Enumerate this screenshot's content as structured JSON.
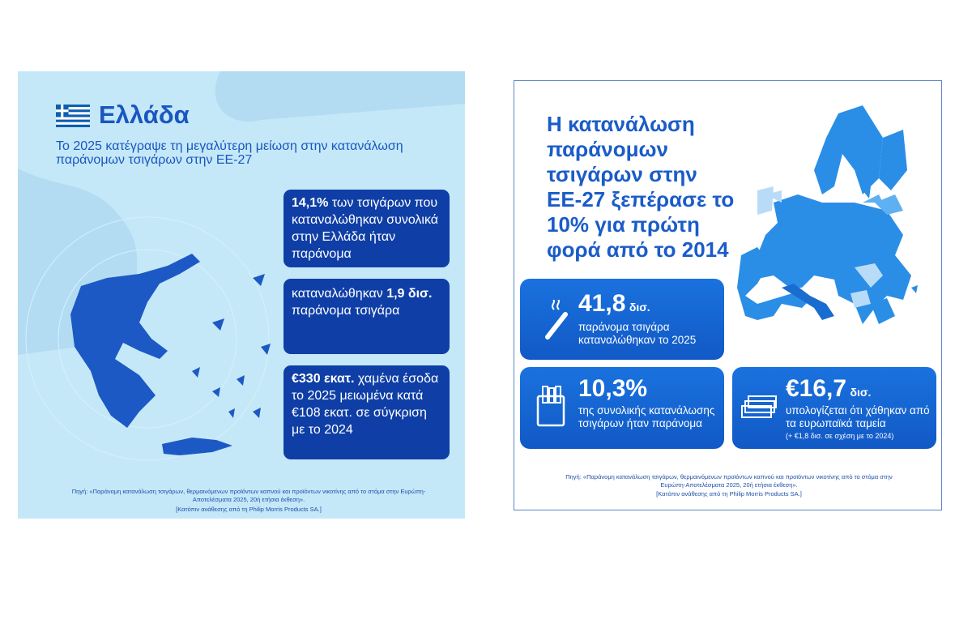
{
  "left": {
    "title": "Ελλάδα",
    "subtitle": "Το 2025 κατέγραψε τη μεγαλύτερη μείωση στην κατανάλωση παράνομων τσιγάρων στην ΕΕ-27",
    "boxes": [
      {
        "bold": "14,1%",
        "text": " των τσιγάρων που καταναλώθηκαν συνολικά στην Ελλάδα ήταν παράνομα"
      },
      {
        "pre": "καταναλώθηκαν ",
        "bold": "1,9 δισ.",
        "text": " παράνομα τσιγάρα"
      },
      {
        "bold": "€330 εκατ.",
        "text": " χαμένα έσοδα το 2025 μειωμένα κατά €108 εκατ. σε σύγκριση με το 2024"
      }
    ],
    "source": "Πηγή: «Παράνομη κατανάλωση τσιγάρων, θερμαινόμενων προϊόντων καπνού και προϊόντων νικοτίνης από το στόμα στην Ευρώπη-Αποτελέσματα 2025, 20ή ετήσια έκθεση».",
    "credit": "[Κατόπιν ανάθεσης από τη Philip Morris Products SA.]"
  },
  "right": {
    "headline": [
      "Η κατανάλωση",
      "παράνομων",
      "τσιγάρων στην",
      "ΕΕ-27 ξεπέρασε το",
      "10% για πρώτη",
      "φορά από το 2014"
    ],
    "stats": [
      {
        "value": "41,8",
        "unit": "δισ.",
        "text": "παράνομα τσιγάρα καταναλώθηκαν το 2025"
      },
      {
        "value": "10,3%",
        "text": "της συνολικής κατανάλωσης τσιγάρων ήταν παράνομα"
      },
      {
        "value": "€16,7",
        "unit": "δισ.",
        "text": "υπολογίζεται ότι χάθηκαν από τα ευρωπαϊκά ταμεία",
        "note": "(+ €1,8 δισ. σε σχέση με το 2024)"
      }
    ],
    "source": "Πηγή: «Παράνομη κατανάλωση τσιγάρων, θερμαινόμενων προϊόντων καπνού και προϊόντων νικοτίνης από το στόμα στην Ευρώπη-Αποτελέσματα 2025, 20ή ετήσια έκθεση».",
    "credit": "[Κατόπιν ανάθεσης από τη Philip Morris Products SA.]"
  }
}
